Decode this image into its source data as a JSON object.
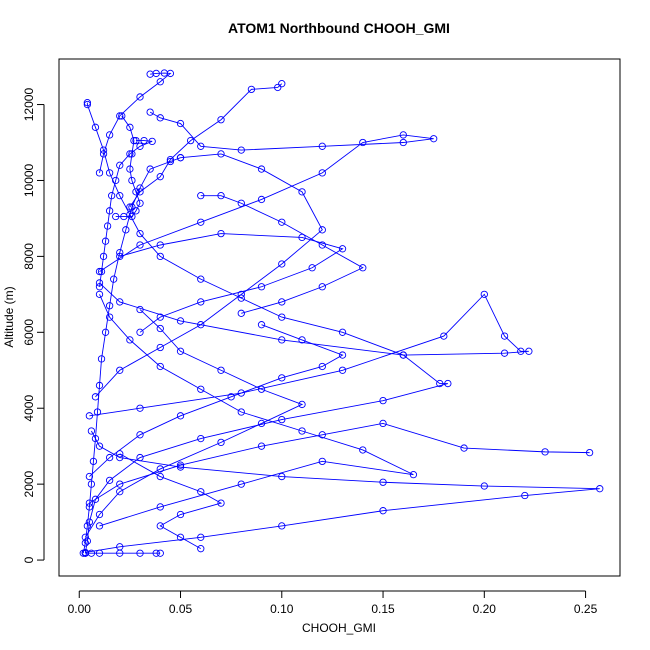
{
  "chart_data": {
    "type": "scatter",
    "title": "ATOM1 Northbound CHOOH_GMI",
    "xlabel": "CHOOH_GMI",
    "ylabel": "Altitude (m)",
    "xlim": [
      -0.01,
      0.267
    ],
    "ylim": [
      -420,
      13200
    ],
    "x_ticks": [
      "0.00",
      "0.05",
      "0.10",
      "0.15",
      "0.20",
      "0.25"
    ],
    "x_tick_values": [
      0,
      0.05,
      0.1,
      0.15,
      0.2,
      0.25
    ],
    "y_ticks": [
      "0",
      "2000",
      "4000",
      "6000",
      "8000",
      "10000",
      "12000"
    ],
    "y_tick_values": [
      0,
      2000,
      4000,
      6000,
      8000,
      10000,
      12000
    ],
    "grid": false,
    "legend": "none",
    "color": "#0000ff",
    "marker": "open-circle",
    "connected": true,
    "series": [
      {
        "values": [
          [
            0.002,
            180
          ],
          [
            0.003,
            450
          ],
          [
            0.004,
            900
          ],
          [
            0.005,
            1400
          ],
          [
            0.006,
            2000
          ],
          [
            0.007,
            2600
          ],
          [
            0.008,
            3200
          ],
          [
            0.009,
            3900
          ],
          [
            0.01,
            4600
          ],
          [
            0.011,
            5300
          ],
          [
            0.013,
            6000
          ],
          [
            0.015,
            6700
          ],
          [
            0.017,
            7400
          ],
          [
            0.02,
            8100
          ],
          [
            0.023,
            8700
          ],
          [
            0.026,
            9300
          ],
          [
            0.03,
            9800
          ],
          [
            0.035,
            10300
          ],
          [
            0.045,
            10500
          ],
          [
            0.05,
            10600
          ]
        ]
      },
      {
        "values": [
          [
            0.004,
            12050
          ],
          [
            0.004,
            12000
          ],
          [
            0.008,
            11400
          ],
          [
            0.012,
            10800
          ],
          [
            0.015,
            10200
          ],
          [
            0.02,
            9600
          ],
          [
            0.025,
            9100
          ],
          [
            0.03,
            8600
          ],
          [
            0.04,
            8000
          ],
          [
            0.06,
            7400
          ],
          [
            0.08,
            6900
          ],
          [
            0.1,
            6400
          ],
          [
            0.13,
            6000
          ],
          [
            0.16,
            5400
          ],
          [
            0.178,
            4650
          ],
          [
            0.182,
            4650
          ],
          [
            0.15,
            4200
          ],
          [
            0.1,
            3700
          ],
          [
            0.06,
            3200
          ],
          [
            0.03,
            2700
          ],
          [
            0.015,
            2100
          ],
          [
            0.008,
            1600
          ],
          [
            0.005,
            1000
          ],
          [
            0.004,
            500
          ],
          [
            0.003,
            180
          ]
        ]
      },
      {
        "values": [
          [
            0.003,
            200
          ],
          [
            0.02,
            350
          ],
          [
            0.06,
            600
          ],
          [
            0.1,
            900
          ],
          [
            0.15,
            1300
          ],
          [
            0.22,
            1700
          ],
          [
            0.257,
            1880
          ],
          [
            0.2,
            1950
          ],
          [
            0.15,
            2050
          ],
          [
            0.1,
            2200
          ],
          [
            0.05,
            2450
          ],
          [
            0.02,
            2700
          ],
          [
            0.01,
            3000
          ],
          [
            0.006,
            3400
          ]
        ]
      },
      {
        "values": [
          [
            0.005,
            3800
          ],
          [
            0.03,
            4000
          ],
          [
            0.08,
            4400
          ],
          [
            0.13,
            5000
          ],
          [
            0.18,
            5900
          ],
          [
            0.2,
            7000
          ],
          [
            0.21,
            5900
          ],
          [
            0.218,
            5500
          ],
          [
            0.222,
            5500
          ],
          [
            0.21,
            5450
          ],
          [
            0.16,
            5400
          ],
          [
            0.1,
            5800
          ],
          [
            0.05,
            6300
          ],
          [
            0.02,
            6800
          ],
          [
            0.01,
            7300
          ]
        ]
      },
      {
        "values": [
          [
            0.01,
            7600
          ],
          [
            0.03,
            8300
          ],
          [
            0.06,
            8900
          ],
          [
            0.09,
            9500
          ],
          [
            0.12,
            10200
          ],
          [
            0.14,
            11000
          ],
          [
            0.16,
            11200
          ],
          [
            0.175,
            11100
          ],
          [
            0.16,
            11000
          ],
          [
            0.12,
            10900
          ],
          [
            0.08,
            10800
          ],
          [
            0.06,
            10900
          ],
          [
            0.05,
            11500
          ],
          [
            0.04,
            11650
          ],
          [
            0.035,
            11800
          ]
        ]
      },
      {
        "values": [
          [
            0.035,
            12800
          ],
          [
            0.038,
            12820
          ],
          [
            0.042,
            12830
          ],
          [
            0.045,
            12820
          ],
          [
            0.04,
            12600
          ],
          [
            0.03,
            12200
          ],
          [
            0.02,
            11700
          ],
          [
            0.015,
            11200
          ],
          [
            0.012,
            10700
          ],
          [
            0.01,
            10200
          ]
        ]
      },
      {
        "values": [
          [
            0.1,
            12550
          ],
          [
            0.098,
            12450
          ],
          [
            0.085,
            12400
          ],
          [
            0.07,
            11600
          ],
          [
            0.055,
            11050
          ],
          [
            0.045,
            10550
          ],
          [
            0.04,
            10100
          ],
          [
            0.03,
            9700
          ],
          [
            0.025,
            9300
          ]
        ]
      },
      {
        "values": [
          [
            0.003,
            600
          ],
          [
            0.01,
            1200
          ],
          [
            0.02,
            1800
          ],
          [
            0.04,
            2400
          ],
          [
            0.07,
            3100
          ],
          [
            0.09,
            3600
          ],
          [
            0.11,
            4100
          ],
          [
            0.09,
            4500
          ],
          [
            0.07,
            5000
          ],
          [
            0.05,
            5500
          ],
          [
            0.04,
            6100
          ],
          [
            0.03,
            6600
          ]
        ]
      },
      {
        "values": [
          [
            0.01,
            900
          ],
          [
            0.04,
            1400
          ],
          [
            0.08,
            2000
          ],
          [
            0.12,
            2600
          ],
          [
            0.165,
            2250
          ],
          [
            0.14,
            2900
          ],
          [
            0.11,
            3400
          ],
          [
            0.08,
            3900
          ],
          [
            0.06,
            4500
          ],
          [
            0.04,
            5100
          ],
          [
            0.025,
            5800
          ],
          [
            0.015,
            6400
          ],
          [
            0.01,
            7000
          ]
        ]
      },
      {
        "values": [
          [
            0.02,
            8000
          ],
          [
            0.04,
            8300
          ],
          [
            0.07,
            8600
          ],
          [
            0.11,
            8500
          ],
          [
            0.13,
            8200
          ],
          [
            0.115,
            7700
          ],
          [
            0.09,
            7200
          ],
          [
            0.06,
            6800
          ],
          [
            0.04,
            6400
          ],
          [
            0.03,
            6000
          ]
        ]
      },
      {
        "values": [
          [
            0.005,
            1500
          ],
          [
            0.02,
            2000
          ],
          [
            0.05,
            2500
          ],
          [
            0.09,
            3000
          ],
          [
            0.12,
            3300
          ],
          [
            0.15,
            3600
          ],
          [
            0.19,
            2950
          ],
          [
            0.23,
            2850
          ],
          [
            0.252,
            2830
          ]
        ]
      },
      {
        "values": [
          [
            0.008,
            4300
          ],
          [
            0.02,
            5000
          ],
          [
            0.04,
            5600
          ],
          [
            0.06,
            6200
          ],
          [
            0.08,
            7000
          ],
          [
            0.1,
            7800
          ],
          [
            0.12,
            8700
          ],
          [
            0.11,
            9700
          ],
          [
            0.09,
            10300
          ],
          [
            0.07,
            10700
          ],
          [
            0.05,
            10600
          ]
        ]
      },
      {
        "values": [
          [
            0.028,
            11050
          ],
          [
            0.032,
            11050
          ],
          [
            0.036,
            11030
          ],
          [
            0.03,
            10900
          ],
          [
            0.025,
            10700
          ],
          [
            0.02,
            10400
          ],
          [
            0.018,
            10000
          ],
          [
            0.016,
            9600
          ],
          [
            0.015,
            9200
          ],
          [
            0.014,
            8800
          ],
          [
            0.013,
            8400
          ],
          [
            0.012,
            8000
          ],
          [
            0.011,
            7600
          ],
          [
            0.01,
            7200
          ]
        ]
      },
      {
        "values": [
          [
            0.018,
            9050
          ],
          [
            0.022,
            9050
          ],
          [
            0.026,
            9050
          ],
          [
            0.028,
            9200
          ],
          [
            0.03,
            9400
          ],
          [
            0.028,
            9700
          ],
          [
            0.026,
            10000
          ],
          [
            0.025,
            10300
          ],
          [
            0.026,
            10700
          ],
          [
            0.027,
            11050
          ],
          [
            0.025,
            11400
          ],
          [
            0.021,
            11700
          ]
        ]
      },
      {
        "values": [
          [
            0.06,
            300
          ],
          [
            0.05,
            600
          ],
          [
            0.04,
            900
          ],
          [
            0.05,
            1200
          ],
          [
            0.07,
            1500
          ],
          [
            0.06,
            1800
          ],
          [
            0.04,
            2200
          ],
          [
            0.02,
            2800
          ]
        ]
      },
      {
        "values": [
          [
            0.003,
            180
          ],
          [
            0.006,
            180
          ],
          [
            0.01,
            180
          ],
          [
            0.02,
            180
          ],
          [
            0.03,
            180
          ],
          [
            0.04,
            180
          ],
          [
            0.038,
            180
          ]
        ]
      },
      {
        "values": [
          [
            0.08,
            6500
          ],
          [
            0.1,
            6800
          ],
          [
            0.12,
            7200
          ],
          [
            0.14,
            7700
          ],
          [
            0.12,
            8300
          ],
          [
            0.1,
            8900
          ],
          [
            0.08,
            9400
          ],
          [
            0.07,
            9600
          ],
          [
            0.06,
            9600
          ]
        ]
      },
      {
        "values": [
          [
            0.005,
            2200
          ],
          [
            0.015,
            2700
          ],
          [
            0.03,
            3300
          ],
          [
            0.05,
            3800
          ],
          [
            0.075,
            4300
          ],
          [
            0.1,
            4800
          ],
          [
            0.12,
            5100
          ],
          [
            0.13,
            5400
          ],
          [
            0.11,
            5800
          ],
          [
            0.09,
            6200
          ]
        ]
      }
    ]
  }
}
